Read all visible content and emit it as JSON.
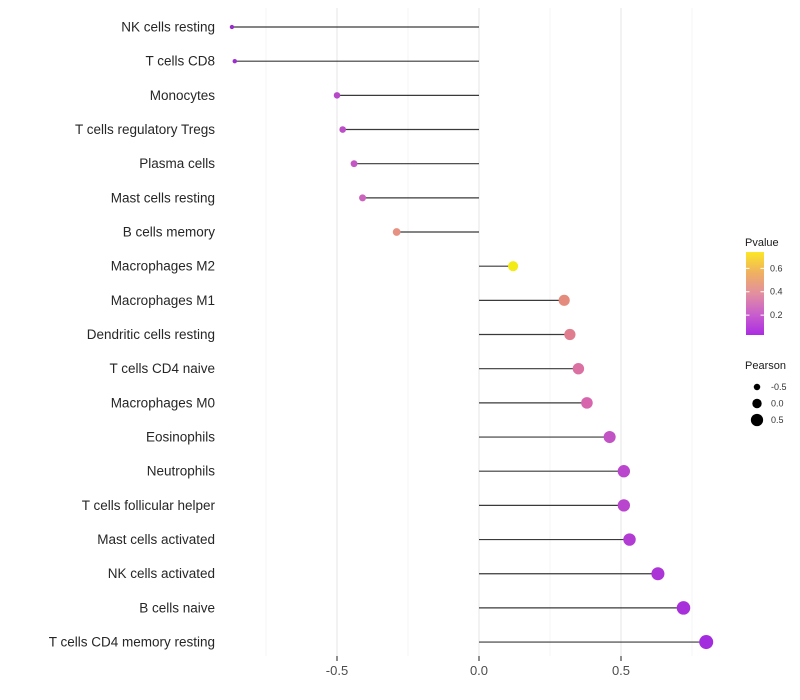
{
  "chart_data": {
    "type": "scatter",
    "style": "horizontal-lollipop",
    "title": "",
    "xlabel": "",
    "ylabel": "",
    "x_axis": {
      "range": [
        -0.95,
        0.87
      ],
      "tick_values": [
        -0.5,
        0.0,
        0.5
      ],
      "tick_labels": [
        "-0.5",
        "0.0",
        "0.5"
      ],
      "minor_gridlines": [
        -0.75,
        -0.25,
        0.25,
        0.75
      ],
      "baseline_value": 0.0
    },
    "grid": "vertical-only",
    "points": [
      {
        "category": "NK cells resting",
        "pearson": -0.87,
        "pvalue": 0.03,
        "color": "#9A2CCE"
      },
      {
        "category": "T cells CD8",
        "pearson": -0.86,
        "pvalue": 0.04,
        "color": "#9E2CD2"
      },
      {
        "category": "Monocytes",
        "pearson": -0.5,
        "pvalue": 0.15,
        "color": "#B749C9"
      },
      {
        "category": "T cells regulatory  Tregs",
        "pearson": -0.48,
        "pvalue": 0.17,
        "color": "#BC4EC7"
      },
      {
        "category": "Plasma cells",
        "pearson": -0.44,
        "pvalue": 0.22,
        "color": "#C457C3"
      },
      {
        "category": "Mast cells resting",
        "pearson": -0.41,
        "pvalue": 0.26,
        "color": "#CB64BC"
      },
      {
        "category": "B cells memory",
        "pearson": -0.29,
        "pvalue": 0.47,
        "color": "#E69181"
      },
      {
        "category": "Macrophages M2",
        "pearson": 0.12,
        "pvalue": 0.68,
        "color": "#F2EB15"
      },
      {
        "category": "Macrophages M1",
        "pearson": 0.3,
        "pvalue": 0.45,
        "color": "#E58B7D"
      },
      {
        "category": "Dendritic cells resting",
        "pearson": 0.32,
        "pvalue": 0.4,
        "color": "#E07E90"
      },
      {
        "category": "T cells CD4 naive",
        "pearson": 0.35,
        "pvalue": 0.34,
        "color": "#DB70A2"
      },
      {
        "category": "Macrophages M0",
        "pearson": 0.38,
        "pvalue": 0.3,
        "color": "#D665AE"
      },
      {
        "category": "Eosinophils",
        "pearson": 0.46,
        "pvalue": 0.21,
        "color": "#C253C4"
      },
      {
        "category": "Neutrophils",
        "pearson": 0.51,
        "pvalue": 0.16,
        "color": "#BB46CE"
      },
      {
        "category": "T cells follicular helper",
        "pearson": 0.51,
        "pvalue": 0.16,
        "color": "#B944CD"
      },
      {
        "category": "Mast cells activated",
        "pearson": 0.53,
        "pvalue": 0.12,
        "color": "#B23CD3"
      },
      {
        "category": "NK cells activated",
        "pearson": 0.63,
        "pvalue": 0.09,
        "color": "#AC35D8"
      },
      {
        "category": "B cells naive",
        "pearson": 0.72,
        "pvalue": 0.07,
        "color": "#A730DB"
      },
      {
        "category": "T cells CD4 memory resting",
        "pearson": 0.8,
        "pvalue": 0.05,
        "color": "#A32CDF"
      }
    ]
  },
  "legend": {
    "pvalue": {
      "title": "Pvalue",
      "scale_min": 0.03,
      "scale_max": 0.74,
      "ticks": [
        {
          "label": "0.6",
          "value": 0.6
        },
        {
          "label": "0.4",
          "value": 0.4
        },
        {
          "label": "0.2",
          "value": 0.2
        }
      ],
      "gradient_top_to_bottom": [
        "#FBE726",
        "#F0B061",
        "#E28FA0",
        "#C95FCC",
        "#AB2CE2"
      ]
    },
    "pearson": {
      "title": "Pearson",
      "dot_color": "#000000",
      "items": [
        {
          "label": "-0.5",
          "value": -0.5
        },
        {
          "label": "0.0",
          "value": 0.0
        },
        {
          "label": "0.5",
          "value": 0.5
        }
      ]
    }
  },
  "colors": {
    "background": "#FFFFFF",
    "stick": "#3A3A3A",
    "grid_major": "#E4E4E4",
    "grid_minor": "#F2F2F2",
    "axis_tick": "#333333",
    "axis_text": "#4D4D4D",
    "category_text": "#262626"
  }
}
